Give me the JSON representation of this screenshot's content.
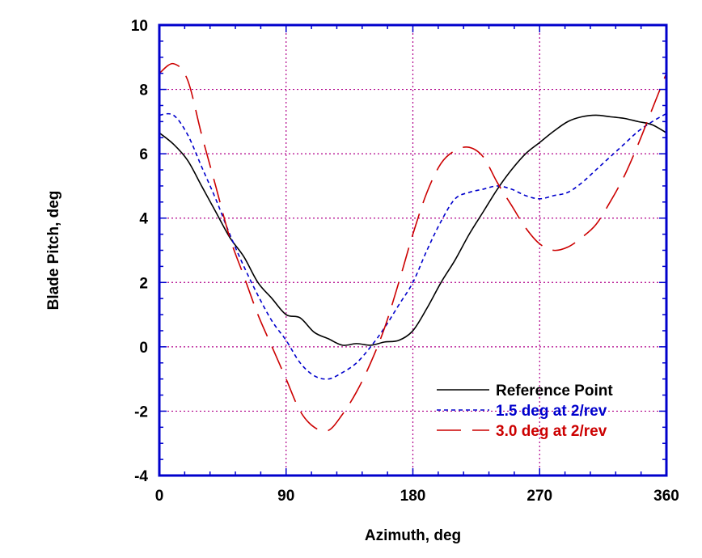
{
  "chart_data": {
    "type": "line",
    "title": "",
    "xlabel": "Azimuth, deg",
    "ylabel": "Blade Pitch, deg",
    "xlim": [
      0,
      360
    ],
    "ylim": [
      -4,
      10
    ],
    "xticks": [
      "0",
      "90",
      "180",
      "270",
      "360"
    ],
    "yticks": [
      "-4",
      "-2",
      "0",
      "2",
      "4",
      "6",
      "8",
      "10"
    ],
    "grid": true,
    "legend_position": "bottom-right",
    "series": [
      {
        "name": "Reference Point",
        "color": "#000000",
        "dash": "solid",
        "x": [
          0,
          10,
          20,
          30,
          40,
          50,
          60,
          70,
          80,
          90,
          100,
          110,
          120,
          130,
          140,
          150,
          160,
          170,
          180,
          190,
          200,
          210,
          220,
          230,
          240,
          250,
          260,
          270,
          280,
          290,
          300,
          310,
          320,
          330,
          340,
          350,
          360
        ],
        "y": [
          6.65,
          6.3,
          5.8,
          5.0,
          4.2,
          3.4,
          2.8,
          2.0,
          1.5,
          1.0,
          0.9,
          0.45,
          0.25,
          0.05,
          0.1,
          0.05,
          0.15,
          0.2,
          0.5,
          1.2,
          2.0,
          2.7,
          3.5,
          4.2,
          4.9,
          5.5,
          6.0,
          6.35,
          6.7,
          7.0,
          7.15,
          7.2,
          7.15,
          7.1,
          7.0,
          6.9,
          6.65
        ]
      },
      {
        "name": "1.5 deg at 2/rev",
        "color": "#0000cc",
        "dash": "short",
        "x": [
          0,
          10,
          20,
          30,
          40,
          50,
          60,
          70,
          80,
          90,
          100,
          110,
          120,
          130,
          140,
          150,
          160,
          170,
          180,
          190,
          200,
          210,
          220,
          230,
          240,
          250,
          260,
          270,
          280,
          290,
          300,
          310,
          320,
          330,
          340,
          350,
          360
        ],
        "y": [
          7.2,
          7.2,
          6.6,
          5.6,
          4.6,
          3.5,
          2.5,
          1.6,
          0.8,
          0.2,
          -0.5,
          -0.9,
          -1.0,
          -0.8,
          -0.5,
          0.0,
          0.6,
          1.3,
          2.0,
          3.0,
          3.9,
          4.6,
          4.8,
          4.9,
          5.0,
          4.9,
          4.7,
          4.6,
          4.7,
          4.8,
          5.1,
          5.5,
          5.9,
          6.3,
          6.7,
          7.0,
          7.25
        ]
      },
      {
        "name": "3.0 deg at 2/rev",
        "color": "#cc0000",
        "dash": "long",
        "x": [
          0,
          10,
          20,
          30,
          40,
          50,
          60,
          70,
          80,
          90,
          100,
          110,
          120,
          130,
          140,
          150,
          160,
          170,
          180,
          190,
          200,
          210,
          220,
          230,
          240,
          250,
          260,
          270,
          280,
          290,
          300,
          310,
          320,
          330,
          340,
          350,
          360
        ],
        "y": [
          8.5,
          8.8,
          8.3,
          6.6,
          5.0,
          3.4,
          2.2,
          1.0,
          0.0,
          -1.0,
          -2.0,
          -2.5,
          -2.6,
          -2.1,
          -1.4,
          -0.5,
          0.6,
          2.0,
          3.5,
          4.8,
          5.7,
          6.1,
          6.2,
          5.9,
          5.1,
          4.4,
          3.7,
          3.2,
          3.0,
          3.1,
          3.4,
          3.8,
          4.5,
          5.3,
          6.3,
          7.4,
          8.5
        ]
      }
    ]
  }
}
